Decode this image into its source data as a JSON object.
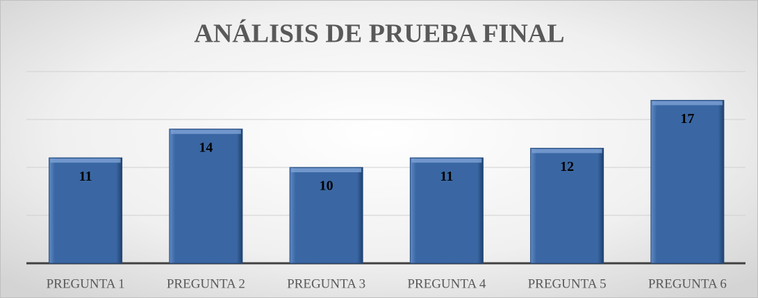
{
  "chart_data": {
    "type": "bar",
    "title": "ANÁLISIS DE PRUEBA FINAL",
    "categories": [
      "PREGUNTA 1",
      "PREGUNTA 2",
      "PREGUNTA 3",
      "PREGUNTA 4",
      "PREGUNTA 5",
      "PREGUNTA 6"
    ],
    "values": [
      11,
      14,
      10,
      11,
      12,
      17
    ],
    "color": "#3a67a3",
    "ylim": [
      0,
      20
    ],
    "yticks": [
      0,
      5,
      10,
      15,
      20
    ],
    "grid": true
  }
}
